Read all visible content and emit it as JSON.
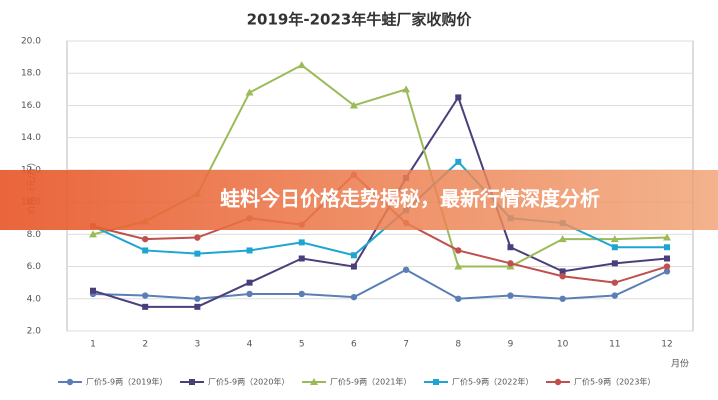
{
  "chart_data": {
    "type": "line",
    "title": "2019年-2023年牛蛙厂家收购价",
    "y_label": "价格（元/斤）",
    "x_label": "月份",
    "categories": [
      "1",
      "2",
      "3",
      "4",
      "5",
      "6",
      "7",
      "8",
      "9",
      "10",
      "11",
      "12"
    ],
    "ylim": [
      2.0,
      20.0
    ],
    "yticks": [
      {
        "value": 2.0,
        "label": "2.0"
      },
      {
        "value": 4.0,
        "label": "4.0"
      },
      {
        "value": 6.0,
        "label": "6.0"
      },
      {
        "value": 8.0,
        "label": "8.0"
      },
      {
        "value": 10.0,
        "label": "10.0"
      },
      {
        "value": 12.0,
        "label": "12.0"
      },
      {
        "value": 14.0,
        "label": "14.0"
      },
      {
        "value": 16.0,
        "label": "16.0"
      },
      {
        "value": 18.0,
        "label": "18.0"
      },
      {
        "value": 20.0,
        "label": "20.0"
      }
    ],
    "grid": true,
    "legend": "bottom",
    "series": [
      {
        "name": "厂价5-9两（2019年）",
        "color": "#5b7fb5",
        "marker": "circle",
        "values": [
          4.3,
          4.2,
          4.0,
          4.3,
          4.3,
          4.1,
          5.8,
          4.0,
          4.2,
          4.0,
          4.2,
          5.7
        ]
      },
      {
        "name": "厂价5-9两（2020年）",
        "color": "#4a3f7a",
        "marker": "square",
        "values": [
          4.5,
          3.5,
          3.5,
          5.0,
          6.5,
          6.0,
          11.5,
          16.5,
          7.2,
          5.7,
          6.2,
          6.5
        ]
      },
      {
        "name": "厂价5-9两（2021年）",
        "color": "#9bbb59",
        "marker": "triangle",
        "values": [
          8.0,
          8.8,
          10.5,
          16.8,
          18.5,
          16.0,
          17.0,
          6.0,
          6.0,
          7.7,
          7.7,
          7.8
        ]
      },
      {
        "name": "厂价5-9两（2022年）",
        "color": "#1fa6d0",
        "marker": "square",
        "values": [
          8.5,
          7.0,
          6.8,
          7.0,
          7.5,
          6.7,
          9.5,
          12.5,
          9.0,
          8.7,
          7.2,
          7.2
        ]
      },
      {
        "name": "厂价5-9两（2023年）",
        "color": "#c0504d",
        "marker": "circle",
        "values": [
          8.5,
          7.7,
          7.8,
          9.0,
          8.6,
          11.7,
          8.7,
          7.0,
          6.2,
          5.4,
          5.0,
          6.0
        ]
      }
    ]
  },
  "overlay": {
    "text": "蛙料今日价格走势揭秘，最新行情深度分析"
  }
}
